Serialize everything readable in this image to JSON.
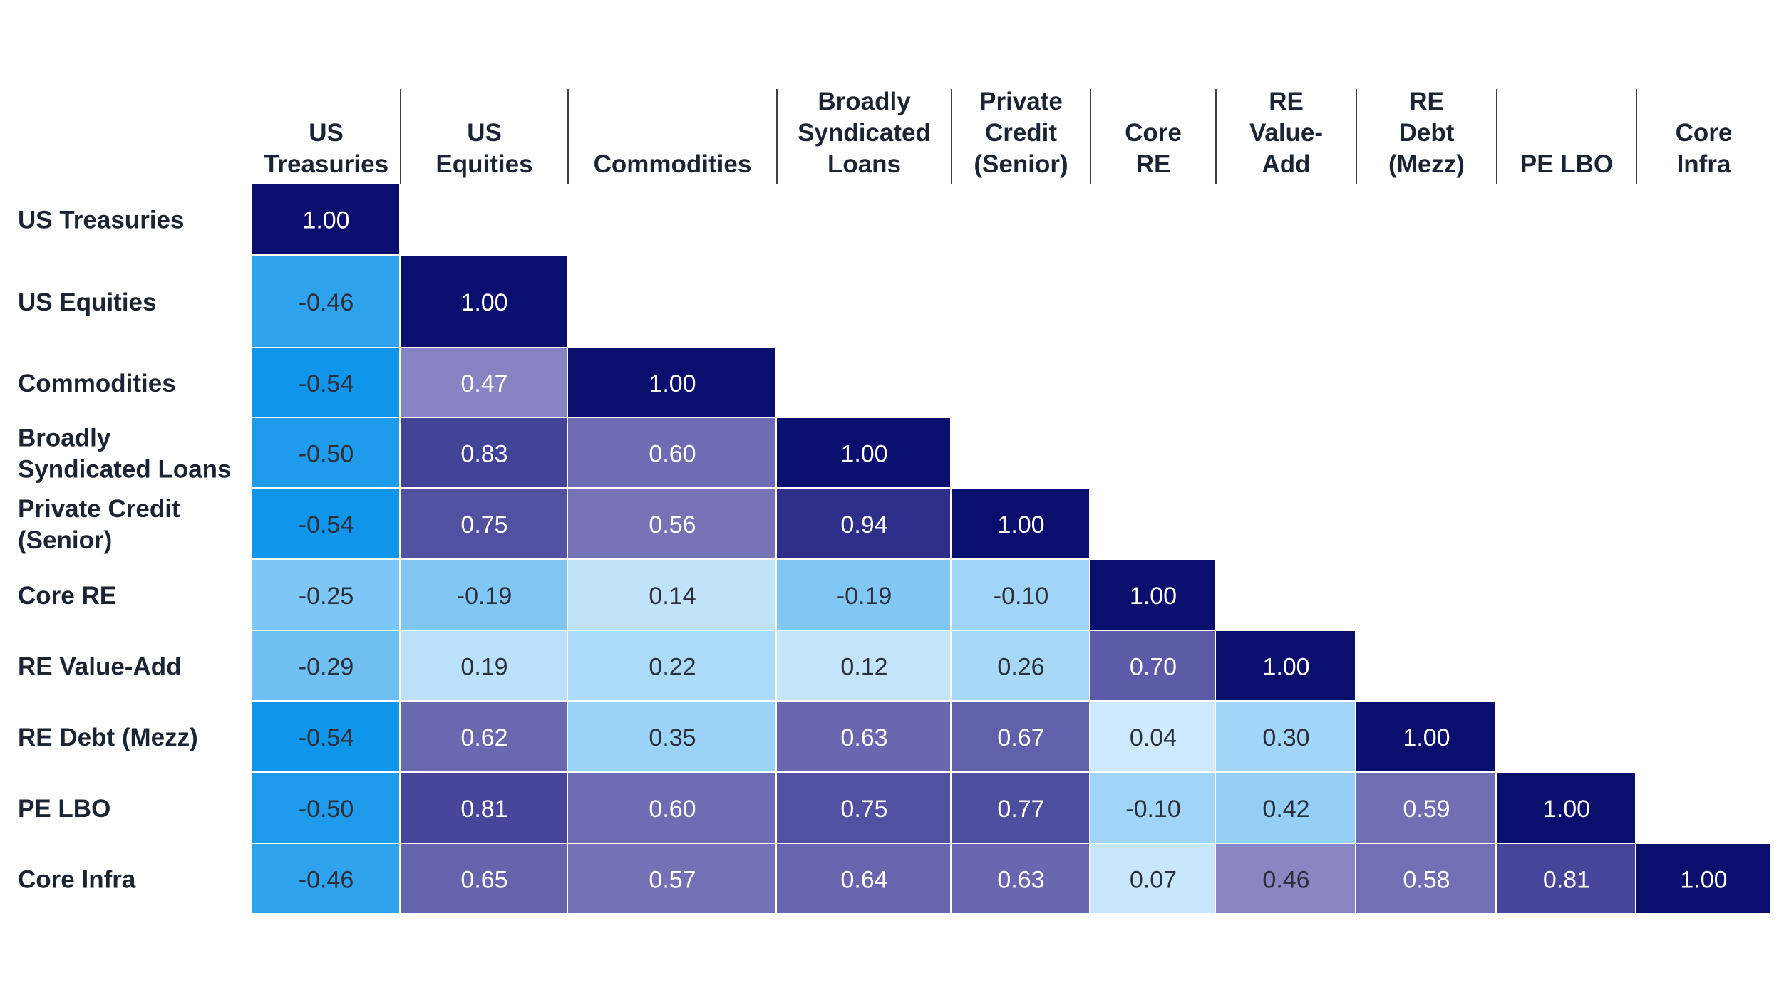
{
  "chart_data": {
    "type": "heatmap",
    "title": "",
    "columns": [
      {
        "key": "ust",
        "lines": [
          "US",
          "Treasuries"
        ]
      },
      {
        "key": "use",
        "lines": [
          "US",
          "Equities"
        ]
      },
      {
        "key": "com",
        "lines": [
          "Commodities"
        ]
      },
      {
        "key": "bsl",
        "lines": [
          "Broadly",
          "Syndicated",
          "Loans"
        ]
      },
      {
        "key": "pcs",
        "lines": [
          "Private",
          "Credit",
          "(Senior)"
        ]
      },
      {
        "key": "cre",
        "lines": [
          "Core",
          "RE"
        ]
      },
      {
        "key": "rva",
        "lines": [
          "RE",
          "Value-",
          "Add"
        ]
      },
      {
        "key": "rdm",
        "lines": [
          "RE",
          "Debt",
          "(Mezz)"
        ]
      },
      {
        "key": "pel",
        "lines": [
          "PE LBO"
        ]
      },
      {
        "key": "cin",
        "lines": [
          "Core",
          "Infra"
        ]
      }
    ],
    "rows": [
      {
        "key": "ust",
        "lines": [
          "US Treasuries"
        ]
      },
      {
        "key": "use",
        "lines": [
          "US Equities"
        ]
      },
      {
        "key": "com",
        "lines": [
          "Commodities"
        ]
      },
      {
        "key": "bsl",
        "lines": [
          "Broadly",
          "Syndicated Loans"
        ]
      },
      {
        "key": "pcs",
        "lines": [
          "Private Credit",
          "(Senior)"
        ]
      },
      {
        "key": "cre",
        "lines": [
          "Core RE"
        ]
      },
      {
        "key": "rva",
        "lines": [
          "RE Value-Add"
        ]
      },
      {
        "key": "rdm",
        "lines": [
          "RE Debt (Mezz)"
        ]
      },
      {
        "key": "pel",
        "lines": [
          "PE LBO"
        ]
      },
      {
        "key": "cin",
        "lines": [
          "Core Infra"
        ]
      }
    ],
    "values": [
      [
        "1.00"
      ],
      [
        "-0.46",
        "1.00"
      ],
      [
        "-0.54",
        "0.47",
        "1.00"
      ],
      [
        "-0.50",
        "0.83",
        "0.60",
        "1.00"
      ],
      [
        "-0.54",
        "0.75",
        "0.56",
        "0.94",
        "1.00"
      ],
      [
        "-0.25",
        "-0.19",
        "0.14",
        "-0.19",
        "-0.10",
        "1.00"
      ],
      [
        "-0.29",
        "0.19",
        "0.22",
        "0.12",
        "0.26",
        "0.70",
        "1.00"
      ],
      [
        "-0.54",
        "0.62",
        "0.35",
        "0.63",
        "0.67",
        "0.04",
        "0.30",
        "1.00"
      ],
      [
        "-0.50",
        "0.81",
        "0.60",
        "0.75",
        "0.77",
        "-0.10",
        "0.42",
        "0.59",
        "1.00"
      ],
      [
        "-0.46",
        "0.65",
        "0.57",
        "0.64",
        "0.63",
        "0.07",
        "0.46",
        "0.58",
        "0.81",
        "1.00"
      ]
    ],
    "color_scale": {
      "diagonal": "#0a0f6e",
      "positive_low": "#d2ebfb",
      "positive_high": "#2d2d8a",
      "mid": "#8a88c4",
      "negative": "#0f95ea",
      "light_text": "#ffffff",
      "dark_text": "#2a2f3a"
    }
  }
}
